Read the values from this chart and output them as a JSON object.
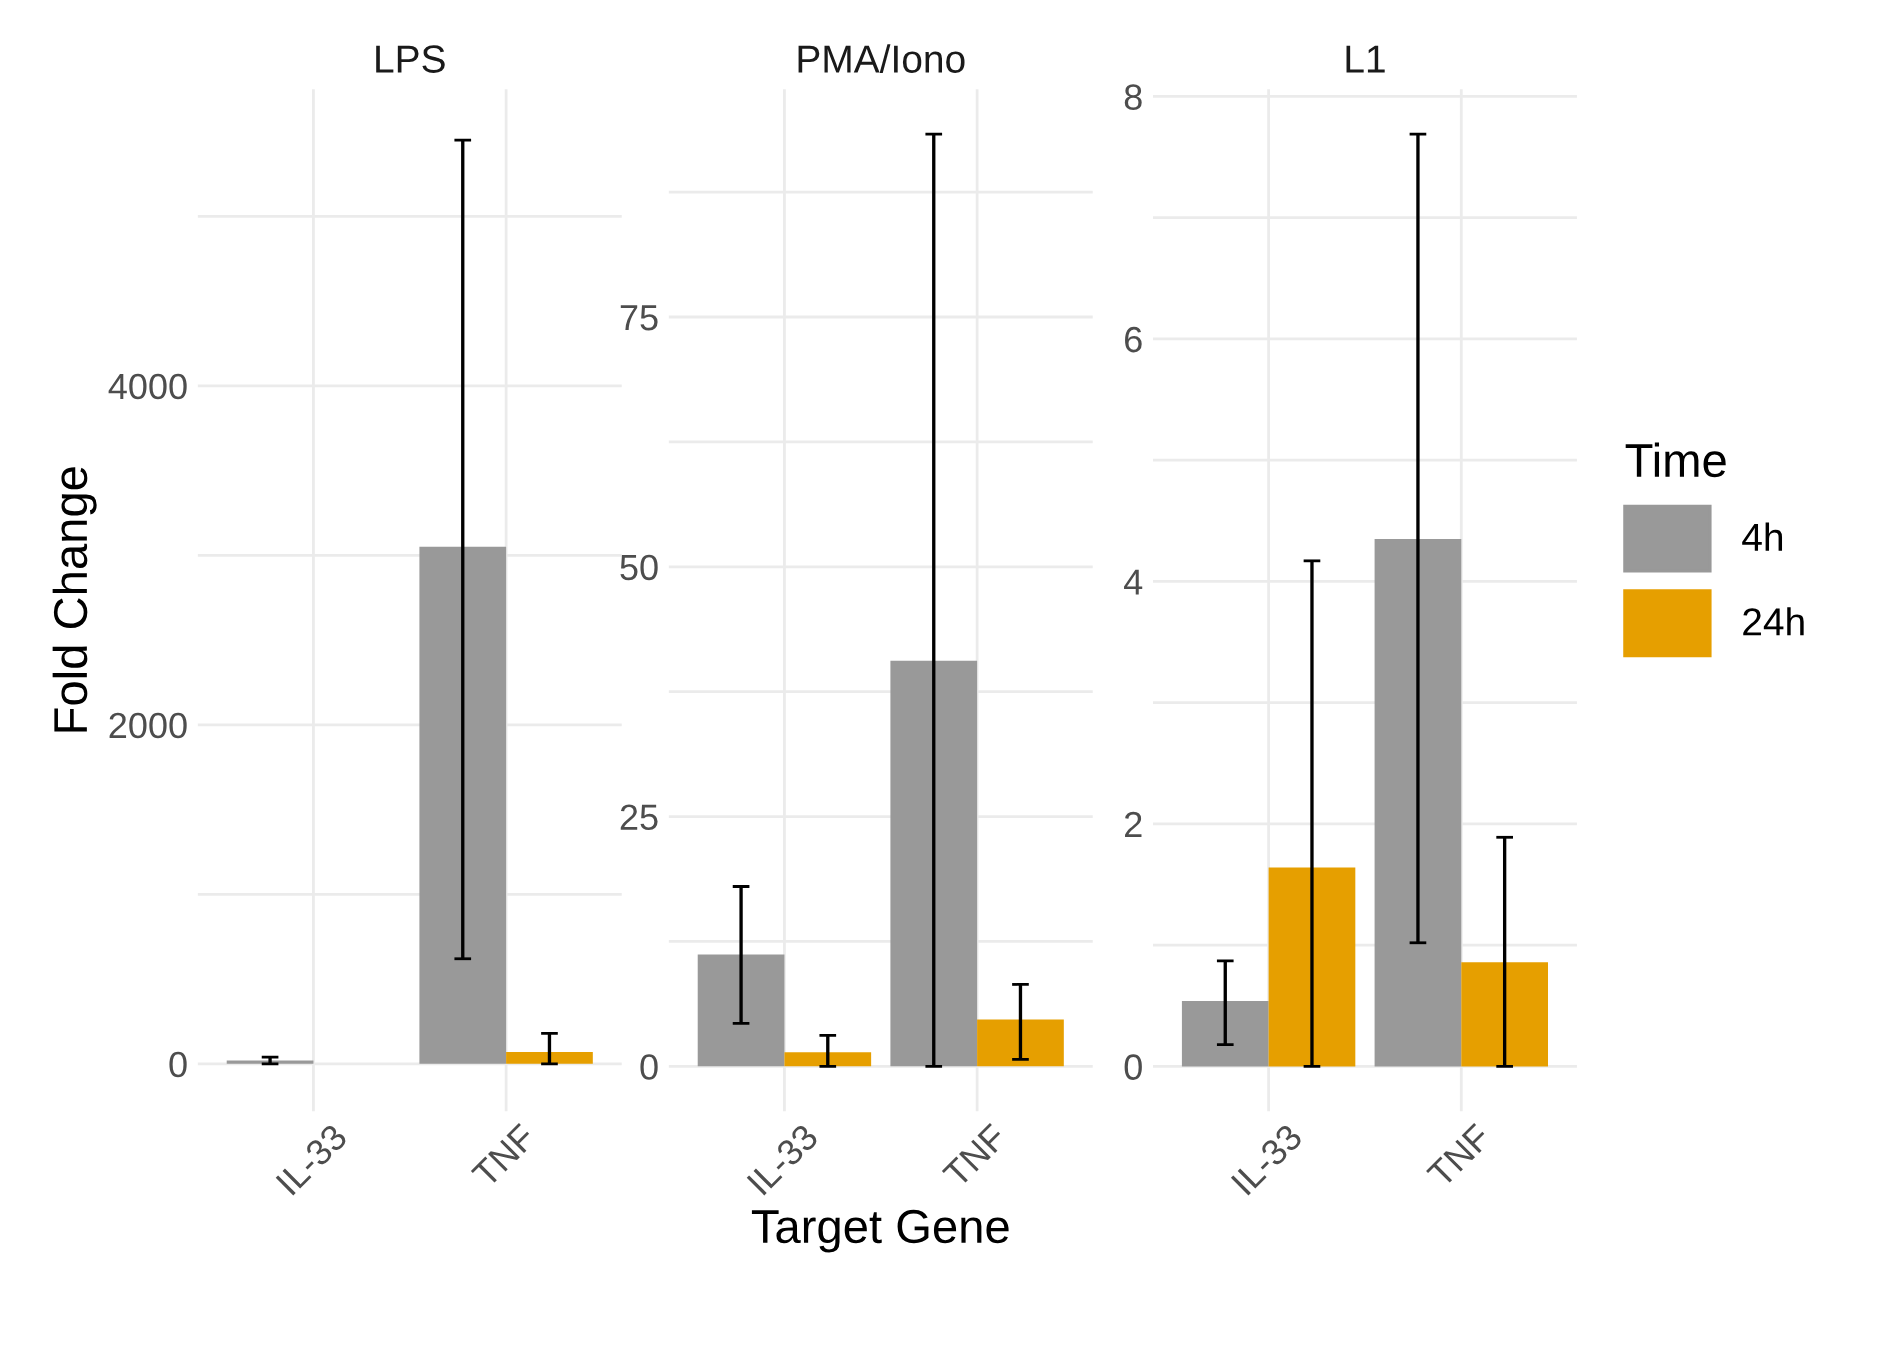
{
  "chart_data": [
    {
      "type": "bar",
      "title": "LPS",
      "ylabel": "Fold Change",
      "categories": [
        "IL-33",
        "TNF"
      ],
      "ylim": [
        -280,
        5750
      ],
      "yticks": [
        0,
        2000,
        4000
      ],
      "grid": true,
      "series": [
        {
          "color": "#999999",
          "values": [
            20,
            3050
          ],
          "errors": [
            [
              0,
              40
            ],
            [
              620,
              5450
            ]
          ]
        },
        {
          "color": "#e69f00",
          "values": [
            0,
            70
          ],
          "errors": [
            null,
            [
              0,
              180
            ]
          ]
        }
      ]
    },
    {
      "type": "bar",
      "title": "PMA/Iono",
      "xlabel": "Target Gene",
      "categories": [
        "IL-33",
        "TNF"
      ],
      "ylim": [
        -4.5,
        97.8
      ],
      "yticks": [
        0,
        25,
        50,
        75
      ],
      "grid": true,
      "series": [
        {
          "color": "#999999",
          "values": [
            11.2,
            40.6
          ],
          "errors": [
            [
              4.3,
              18.0
            ],
            [
              0,
              93.3
            ]
          ]
        },
        {
          "color": "#e69f00",
          "values": [
            1.4,
            4.7
          ],
          "errors": [
            [
              0,
              3.1
            ],
            [
              0.7,
              8.2
            ]
          ]
        }
      ]
    },
    {
      "type": "bar",
      "title": "L1",
      "categories": [
        "IL-33",
        "TNF"
      ],
      "ylim": [
        -0.37,
        8.06
      ],
      "yticks": [
        0,
        2,
        4,
        6,
        8
      ],
      "grid": true,
      "legend": "right",
      "legend_title": "Time",
      "series": [
        {
          "name": "4h",
          "color": "#999999",
          "values": [
            0.54,
            4.35
          ],
          "errors": [
            [
              0.18,
              0.87
            ],
            [
              1.02,
              7.69
            ]
          ]
        },
        {
          "name": "24h",
          "color": "#e69f00",
          "values": [
            1.64,
            0.86
          ],
          "errors": [
            [
              0,
              4.17
            ],
            [
              0,
              1.89
            ]
          ]
        }
      ]
    }
  ]
}
